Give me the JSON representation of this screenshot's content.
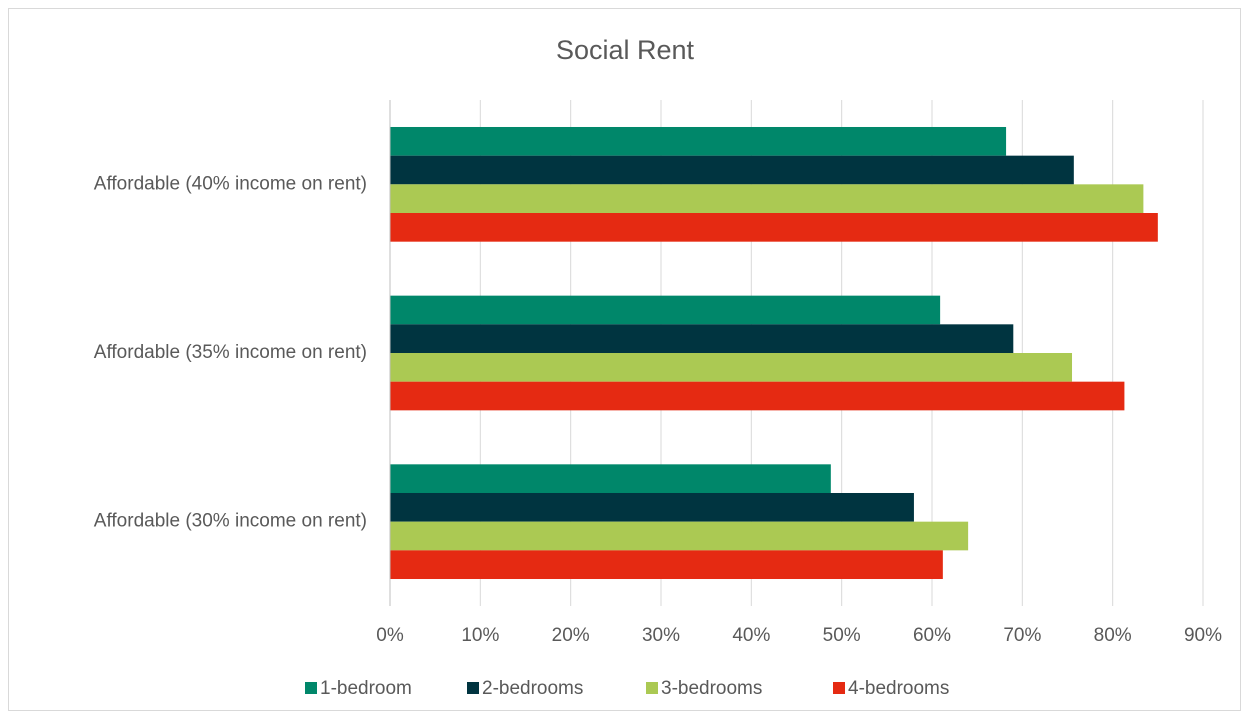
{
  "chart_data": {
    "type": "bar",
    "orientation": "horizontal",
    "title": "Social Rent",
    "categories": [
      "Affordable (40% income on rent)",
      "Affordable (35% income on rent)",
      "Affordable (30% income on rent)"
    ],
    "series": [
      {
        "name": "1-bedroom",
        "color": "#00876a",
        "values": [
          68.2,
          60.9,
          48.8
        ]
      },
      {
        "name": "2-bedrooms",
        "color": "#003440",
        "values": [
          75.7,
          69.0,
          58.0
        ]
      },
      {
        "name": "3-bedrooms",
        "color": "#abc953",
        "values": [
          83.4,
          75.5,
          64.0
        ]
      },
      {
        "name": "4-bedrooms",
        "color": "#e52a12",
        "values": [
          85.0,
          81.3,
          61.2
        ]
      }
    ],
    "xlim": [
      0,
      90
    ],
    "xticks": [
      {
        "value": 0,
        "label": "0%"
      },
      {
        "value": 10,
        "label": "10%"
      },
      {
        "value": 20,
        "label": "20%"
      },
      {
        "value": 30,
        "label": "30%"
      },
      {
        "value": 40,
        "label": "40%"
      },
      {
        "value": 50,
        "label": "50%"
      },
      {
        "value": 60,
        "label": "60%"
      },
      {
        "value": 70,
        "label": "70%"
      },
      {
        "value": 80,
        "label": "80%"
      },
      {
        "value": 90,
        "label": "90%"
      }
    ],
    "grid": true,
    "legend": "bottom"
  }
}
